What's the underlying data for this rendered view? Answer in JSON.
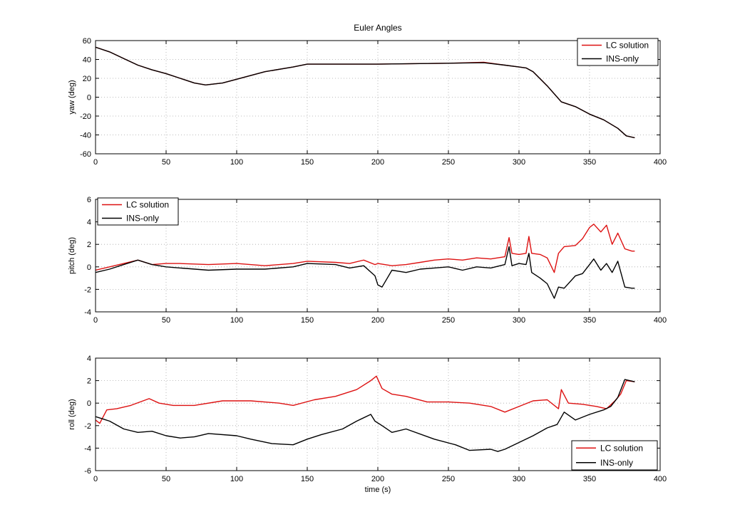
{
  "figure": {
    "title": "Euler Angles"
  },
  "colors": {
    "lc": "#dd1111",
    "ins": "#000000",
    "grid": "#a8a8a8",
    "axes": "#000000"
  },
  "chart_data": [
    {
      "type": "line",
      "title": "Euler Angles",
      "xlabel": "",
      "ylabel": "yaw (deg)",
      "xlim": [
        0,
        400
      ],
      "ylim": [
        -60,
        60
      ],
      "xticks": [
        0,
        50,
        100,
        150,
        200,
        250,
        300,
        350,
        400
      ],
      "yticks": [
        -60,
        -40,
        -20,
        0,
        20,
        40,
        60
      ],
      "grid": true,
      "legend_location": "top-right",
      "series": [
        {
          "name": "LC solution",
          "color": "#dd1111",
          "x": [
            0,
            10,
            20,
            30,
            40,
            50,
            60,
            70,
            78,
            90,
            100,
            120,
            140,
            150,
            200,
            250,
            275,
            290,
            300,
            305,
            310,
            320,
            330,
            340,
            350,
            360,
            370,
            376,
            382
          ],
          "y": [
            53,
            48,
            41,
            34,
            29,
            25,
            20,
            15,
            13,
            15,
            19,
            27,
            32,
            35,
            35,
            36,
            37,
            34,
            32,
            31,
            27,
            12,
            -5,
            -10,
            -18,
            -24,
            -33,
            -41,
            -43
          ]
        },
        {
          "name": "INS-only",
          "color": "#000000",
          "x": [
            0,
            10,
            20,
            30,
            40,
            50,
            60,
            70,
            78,
            90,
            100,
            120,
            140,
            150,
            200,
            250,
            275,
            290,
            300,
            305,
            310,
            320,
            330,
            340,
            350,
            360,
            370,
            376,
            382
          ],
          "y": [
            53,
            48,
            41,
            34,
            29,
            25,
            20,
            15,
            13,
            15,
            19,
            27,
            32,
            35,
            35,
            36,
            36.5,
            34,
            32,
            31,
            27,
            12,
            -5,
            -10,
            -18,
            -24,
            -33,
            -41,
            -43
          ]
        }
      ]
    },
    {
      "type": "line",
      "title": "",
      "xlabel": "",
      "ylabel": "pitch (deg)",
      "xlim": [
        0,
        400
      ],
      "ylim": [
        -4,
        6
      ],
      "xticks": [
        0,
        50,
        100,
        150,
        200,
        250,
        300,
        350,
        400
      ],
      "yticks": [
        -4,
        -2,
        0,
        2,
        4,
        6
      ],
      "grid": true,
      "legend_location": "top-left",
      "series": [
        {
          "name": "LC solution",
          "color": "#dd1111",
          "x": [
            0,
            10,
            20,
            30,
            40,
            50,
            60,
            80,
            100,
            120,
            140,
            150,
            170,
            180,
            190,
            198,
            200,
            210,
            220,
            230,
            240,
            250,
            260,
            270,
            280,
            290,
            293,
            295,
            300,
            305,
            307,
            309,
            315,
            320,
            325,
            328,
            332,
            340,
            345,
            350,
            353,
            358,
            362,
            366,
            370,
            375,
            380,
            382
          ],
          "y": [
            -0.3,
            0,
            0.3,
            0.6,
            0.2,
            0.3,
            0.3,
            0.2,
            0.3,
            0.1,
            0.3,
            0.5,
            0.4,
            0.3,
            0.6,
            0.2,
            0.3,
            0.1,
            0.2,
            0.4,
            0.6,
            0.7,
            0.6,
            0.8,
            0.7,
            0.9,
            2.6,
            1.2,
            1.1,
            1.2,
            2.7,
            1.2,
            1.1,
            0.8,
            -0.5,
            1.2,
            1.8,
            1.9,
            2.5,
            3.5,
            3.8,
            3.1,
            3.7,
            2.0,
            3.0,
            1.6,
            1.4,
            1.4
          ]
        },
        {
          "name": "INS-only",
          "color": "#000000",
          "x": [
            0,
            10,
            20,
            30,
            40,
            50,
            60,
            80,
            100,
            120,
            140,
            150,
            170,
            180,
            190,
            198,
            200,
            203,
            210,
            220,
            230,
            240,
            250,
            260,
            270,
            280,
            290,
            293,
            295,
            300,
            305,
            307,
            309,
            315,
            320,
            325,
            328,
            332,
            340,
            345,
            350,
            353,
            358,
            362,
            366,
            370,
            375,
            380,
            382
          ],
          "y": [
            -0.5,
            -0.2,
            0.2,
            0.6,
            0.2,
            0,
            -0.1,
            -0.3,
            -0.2,
            -0.2,
            0,
            0.3,
            0.2,
            -0.1,
            0.1,
            -0.8,
            -1.6,
            -1.8,
            -0.3,
            -0.5,
            -0.2,
            -0.1,
            0,
            -0.3,
            0,
            -0.1,
            0.2,
            1.8,
            0.1,
            0.3,
            0.2,
            1.2,
            -0.5,
            -1.0,
            -1.5,
            -2.8,
            -1.8,
            -1.9,
            -0.8,
            -0.6,
            0.2,
            0.7,
            -0.3,
            0.3,
            -0.5,
            0.5,
            -1.8,
            -1.9,
            -1.9
          ]
        }
      ]
    },
    {
      "type": "line",
      "title": "",
      "xlabel": "time (s)",
      "ylabel": "roll (deg)",
      "xlim": [
        0,
        400
      ],
      "ylim": [
        -6,
        4
      ],
      "xticks": [
        0,
        50,
        100,
        150,
        200,
        250,
        300,
        350,
        400
      ],
      "yticks": [
        -6,
        -4,
        -2,
        0,
        2,
        4
      ],
      "grid": true,
      "legend_location": "bottom-right",
      "series": [
        {
          "name": "LC solution",
          "color": "#dd1111",
          "x": [
            0,
            3,
            8,
            15,
            25,
            38,
            45,
            55,
            70,
            90,
            110,
            130,
            140,
            155,
            170,
            185,
            195,
            199,
            203,
            210,
            220,
            235,
            250,
            265,
            280,
            290,
            300,
            310,
            320,
            328,
            330,
            335,
            345,
            355,
            362,
            368,
            372,
            376,
            382
          ],
          "y": [
            -1.5,
            -1.8,
            -0.6,
            -0.5,
            -0.2,
            0.4,
            0,
            -0.2,
            -0.2,
            0.2,
            0.2,
            0,
            -0.2,
            0.3,
            0.6,
            1.2,
            2.0,
            2.4,
            1.3,
            0.8,
            0.6,
            0.1,
            0.1,
            0,
            -0.3,
            -0.8,
            -0.3,
            0.2,
            0.3,
            -0.5,
            1.2,
            0,
            -0.1,
            -0.3,
            -0.5,
            0.2,
            0.8,
            2.0,
            1.9
          ]
        },
        {
          "name": "INS-only",
          "color": "#000000",
          "x": [
            0,
            5,
            10,
            20,
            30,
            40,
            50,
            60,
            70,
            80,
            100,
            110,
            125,
            140,
            150,
            160,
            175,
            185,
            195,
            198,
            203,
            210,
            220,
            240,
            255,
            265,
            280,
            285,
            290,
            300,
            310,
            320,
            327,
            332,
            340,
            350,
            360,
            365,
            370,
            375,
            382
          ],
          "y": [
            -1.2,
            -1.4,
            -1.6,
            -2.3,
            -2.6,
            -2.5,
            -2.9,
            -3.1,
            -3.0,
            -2.7,
            -2.9,
            -3.2,
            -3.6,
            -3.7,
            -3.2,
            -2.8,
            -2.3,
            -1.6,
            -1.0,
            -1.6,
            -2.0,
            -2.6,
            -2.3,
            -3.2,
            -3.7,
            -4.2,
            -4.1,
            -4.3,
            -4.1,
            -3.5,
            -2.9,
            -2.2,
            -1.9,
            -0.8,
            -1.5,
            -1.0,
            -0.6,
            -0.3,
            0.5,
            2.1,
            1.9
          ]
        }
      ]
    }
  ]
}
